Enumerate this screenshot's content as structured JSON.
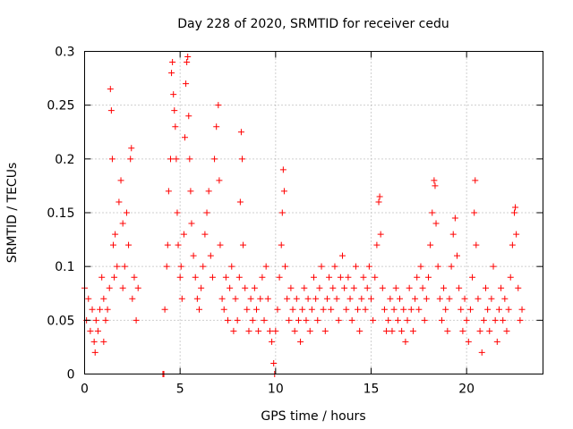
{
  "chart_data": {
    "type": "scatter",
    "title": "Day 228 of 2020, SRMTID for receiver cedu",
    "xlabel": "GPS time / hours",
    "ylabel": "SRMTID / TECUs",
    "xlim": [
      0,
      24
    ],
    "ylim": [
      0,
      0.3
    ],
    "xticks": [
      0,
      5,
      10,
      15,
      20
    ],
    "xtick_labels": [
      "0",
      "5",
      "10",
      "15",
      "20"
    ],
    "yticks": [
      0,
      0.05,
      0.1,
      0.15,
      0.2,
      0.25,
      0.3
    ],
    "ytick_labels": [
      "0",
      "0.05",
      "0.1",
      "0.15",
      "0.2",
      "0.25",
      "0.3"
    ],
    "grid": true,
    "marker": "+",
    "series": [
      {
        "name": "SRMTID",
        "color": "#ff0000",
        "points": [
          [
            0.0,
            0.08
          ],
          [
            0.1,
            0.05
          ],
          [
            0.2,
            0.07
          ],
          [
            0.3,
            0.04
          ],
          [
            0.4,
            0.06
          ],
          [
            0.5,
            0.03
          ],
          [
            0.55,
            0.02
          ],
          [
            0.6,
            0.05
          ],
          [
            0.7,
            0.04
          ],
          [
            0.8,
            0.06
          ],
          [
            0.9,
            0.09
          ],
          [
            1.0,
            0.03
          ],
          [
            1.0,
            0.07
          ],
          [
            1.1,
            0.05
          ],
          [
            1.2,
            0.06
          ],
          [
            1.3,
            0.08
          ],
          [
            1.35,
            0.265
          ],
          [
            1.4,
            0.245
          ],
          [
            1.45,
            0.2
          ],
          [
            1.5,
            0.12
          ],
          [
            1.55,
            0.09
          ],
          [
            1.6,
            0.13
          ],
          [
            1.7,
            0.1
          ],
          [
            1.8,
            0.16
          ],
          [
            1.9,
            0.18
          ],
          [
            2.0,
            0.14
          ],
          [
            2.0,
            0.08
          ],
          [
            2.1,
            0.1
          ],
          [
            2.2,
            0.15
          ],
          [
            2.3,
            0.12
          ],
          [
            2.4,
            0.2
          ],
          [
            2.45,
            0.21
          ],
          [
            2.5,
            0.07
          ],
          [
            2.6,
            0.09
          ],
          [
            2.7,
            0.05
          ],
          [
            2.8,
            0.08
          ],
          [
            4.1,
            0.0
          ],
          [
            4.15,
            0.0
          ],
          [
            4.2,
            0.06
          ],
          [
            4.3,
            0.1
          ],
          [
            4.35,
            0.12
          ],
          [
            4.4,
            0.17
          ],
          [
            4.5,
            0.2
          ],
          [
            4.55,
            0.28
          ],
          [
            4.6,
            0.29
          ],
          [
            4.65,
            0.26
          ],
          [
            4.7,
            0.245
          ],
          [
            4.75,
            0.23
          ],
          [
            4.8,
            0.2
          ],
          [
            4.85,
            0.15
          ],
          [
            4.9,
            0.12
          ],
          [
            5.0,
            0.09
          ],
          [
            5.05,
            0.1
          ],
          [
            5.1,
            0.07
          ],
          [
            5.2,
            0.13
          ],
          [
            5.25,
            0.22
          ],
          [
            5.3,
            0.27
          ],
          [
            5.35,
            0.29
          ],
          [
            5.4,
            0.295
          ],
          [
            5.45,
            0.24
          ],
          [
            5.5,
            0.2
          ],
          [
            5.55,
            0.17
          ],
          [
            5.6,
            0.14
          ],
          [
            5.7,
            0.11
          ],
          [
            5.8,
            0.09
          ],
          [
            5.9,
            0.07
          ],
          [
            6.0,
            0.06
          ],
          [
            6.1,
            0.08
          ],
          [
            6.2,
            0.1
          ],
          [
            6.3,
            0.13
          ],
          [
            6.4,
            0.15
          ],
          [
            6.5,
            0.17
          ],
          [
            6.6,
            0.11
          ],
          [
            6.7,
            0.09
          ],
          [
            6.8,
            0.2
          ],
          [
            6.9,
            0.23
          ],
          [
            7.0,
            0.25
          ],
          [
            7.05,
            0.18
          ],
          [
            7.1,
            0.12
          ],
          [
            7.2,
            0.07
          ],
          [
            7.3,
            0.06
          ],
          [
            7.4,
            0.09
          ],
          [
            7.5,
            0.05
          ],
          [
            7.6,
            0.08
          ],
          [
            7.7,
            0.1
          ],
          [
            7.8,
            0.04
          ],
          [
            7.9,
            0.07
          ],
          [
            8.0,
            0.05
          ],
          [
            8.1,
            0.09
          ],
          [
            8.15,
            0.16
          ],
          [
            8.2,
            0.225
          ],
          [
            8.25,
            0.2
          ],
          [
            8.3,
            0.12
          ],
          [
            8.4,
            0.08
          ],
          [
            8.5,
            0.06
          ],
          [
            8.6,
            0.04
          ],
          [
            8.7,
            0.07
          ],
          [
            8.8,
            0.05
          ],
          [
            8.9,
            0.08
          ],
          [
            9.0,
            0.06
          ],
          [
            9.1,
            0.04
          ],
          [
            9.2,
            0.07
          ],
          [
            9.3,
            0.09
          ],
          [
            9.4,
            0.05
          ],
          [
            9.5,
            0.1
          ],
          [
            9.6,
            0.07
          ],
          [
            9.7,
            0.04
          ],
          [
            9.8,
            0.03
          ],
          [
            9.9,
            0.01
          ],
          [
            9.95,
            0.0
          ],
          [
            10.0,
            0.04
          ],
          [
            10.1,
            0.06
          ],
          [
            10.2,
            0.09
          ],
          [
            10.3,
            0.12
          ],
          [
            10.35,
            0.15
          ],
          [
            10.4,
            0.19
          ],
          [
            10.45,
            0.17
          ],
          [
            10.5,
            0.1
          ],
          [
            10.6,
            0.07
          ],
          [
            10.7,
            0.05
          ],
          [
            10.8,
            0.08
          ],
          [
            10.9,
            0.06
          ],
          [
            11.0,
            0.04
          ],
          [
            11.1,
            0.07
          ],
          [
            11.2,
            0.05
          ],
          [
            11.3,
            0.03
          ],
          [
            11.4,
            0.06
          ],
          [
            11.5,
            0.08
          ],
          [
            11.6,
            0.05
          ],
          [
            11.7,
            0.07
          ],
          [
            11.8,
            0.04
          ],
          [
            11.9,
            0.06
          ],
          [
            12.0,
            0.09
          ],
          [
            12.1,
            0.07
          ],
          [
            12.2,
            0.05
          ],
          [
            12.3,
            0.08
          ],
          [
            12.4,
            0.1
          ],
          [
            12.5,
            0.06
          ],
          [
            12.6,
            0.04
          ],
          [
            12.7,
            0.07
          ],
          [
            12.8,
            0.09
          ],
          [
            12.9,
            0.06
          ],
          [
            13.0,
            0.08
          ],
          [
            13.1,
            0.1
          ],
          [
            13.2,
            0.07
          ],
          [
            13.3,
            0.05
          ],
          [
            13.4,
            0.09
          ],
          [
            13.5,
            0.11
          ],
          [
            13.6,
            0.08
          ],
          [
            13.7,
            0.06
          ],
          [
            13.8,
            0.09
          ],
          [
            13.9,
            0.07
          ],
          [
            14.0,
            0.05
          ],
          [
            14.1,
            0.08
          ],
          [
            14.2,
            0.1
          ],
          [
            14.3,
            0.06
          ],
          [
            14.4,
            0.04
          ],
          [
            14.5,
            0.07
          ],
          [
            14.6,
            0.09
          ],
          [
            14.7,
            0.06
          ],
          [
            14.8,
            0.08
          ],
          [
            14.9,
            0.1
          ],
          [
            15.0,
            0.07
          ],
          [
            15.1,
            0.05
          ],
          [
            15.2,
            0.09
          ],
          [
            15.3,
            0.12
          ],
          [
            15.4,
            0.16
          ],
          [
            15.45,
            0.165
          ],
          [
            15.5,
            0.13
          ],
          [
            15.6,
            0.08
          ],
          [
            15.7,
            0.06
          ],
          [
            15.8,
            0.04
          ],
          [
            15.9,
            0.05
          ],
          [
            16.0,
            0.07
          ],
          [
            16.1,
            0.04
          ],
          [
            16.2,
            0.06
          ],
          [
            16.3,
            0.08
          ],
          [
            16.4,
            0.05
          ],
          [
            16.5,
            0.07
          ],
          [
            16.6,
            0.04
          ],
          [
            16.7,
            0.06
          ],
          [
            16.8,
            0.03
          ],
          [
            16.9,
            0.05
          ],
          [
            17.0,
            0.08
          ],
          [
            17.1,
            0.06
          ],
          [
            17.2,
            0.04
          ],
          [
            17.3,
            0.07
          ],
          [
            17.4,
            0.09
          ],
          [
            17.5,
            0.06
          ],
          [
            17.6,
            0.1
          ],
          [
            17.7,
            0.08
          ],
          [
            17.8,
            0.05
          ],
          [
            17.9,
            0.07
          ],
          [
            18.0,
            0.09
          ],
          [
            18.1,
            0.12
          ],
          [
            18.2,
            0.15
          ],
          [
            18.3,
            0.18
          ],
          [
            18.35,
            0.175
          ],
          [
            18.4,
            0.14
          ],
          [
            18.5,
            0.1
          ],
          [
            18.6,
            0.07
          ],
          [
            18.7,
            0.05
          ],
          [
            18.8,
            0.08
          ],
          [
            18.9,
            0.06
          ],
          [
            19.0,
            0.04
          ],
          [
            19.1,
            0.07
          ],
          [
            19.2,
            0.1
          ],
          [
            19.3,
            0.13
          ],
          [
            19.4,
            0.145
          ],
          [
            19.5,
            0.11
          ],
          [
            19.6,
            0.08
          ],
          [
            19.7,
            0.06
          ],
          [
            19.8,
            0.04
          ],
          [
            19.9,
            0.07
          ],
          [
            20.0,
            0.05
          ],
          [
            20.1,
            0.03
          ],
          [
            20.2,
            0.06
          ],
          [
            20.3,
            0.09
          ],
          [
            20.4,
            0.15
          ],
          [
            20.45,
            0.18
          ],
          [
            20.5,
            0.12
          ],
          [
            20.6,
            0.07
          ],
          [
            20.7,
            0.04
          ],
          [
            20.8,
            0.02
          ],
          [
            20.9,
            0.05
          ],
          [
            21.0,
            0.08
          ],
          [
            21.1,
            0.06
          ],
          [
            21.2,
            0.04
          ],
          [
            21.3,
            0.07
          ],
          [
            21.4,
            0.1
          ],
          [
            21.5,
            0.05
          ],
          [
            21.6,
            0.03
          ],
          [
            21.7,
            0.06
          ],
          [
            21.8,
            0.08
          ],
          [
            21.9,
            0.05
          ],
          [
            22.0,
            0.07
          ],
          [
            22.1,
            0.04
          ],
          [
            22.2,
            0.06
          ],
          [
            22.3,
            0.09
          ],
          [
            22.4,
            0.12
          ],
          [
            22.5,
            0.15
          ],
          [
            22.55,
            0.155
          ],
          [
            22.6,
            0.13
          ],
          [
            22.7,
            0.08
          ],
          [
            22.8,
            0.05
          ],
          [
            22.9,
            0.06
          ]
        ]
      }
    ]
  }
}
